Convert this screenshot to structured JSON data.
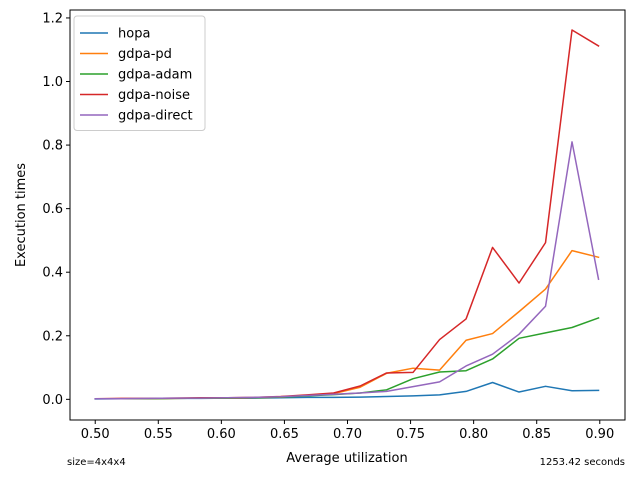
{
  "chart_data": {
    "type": "line",
    "title": "",
    "xlabel": "Average utilization",
    "ylabel": "Execution times",
    "xlim": [
      0.48,
      0.92
    ],
    "ylim": [
      -0.065,
      1.225
    ],
    "xticks": [
      0.5,
      0.55,
      0.6,
      0.65,
      0.7,
      0.75,
      0.8,
      0.85,
      0.9
    ],
    "xtick_labels": [
      "0.50",
      "0.55",
      "0.60",
      "0.65",
      "0.70",
      "0.75",
      "0.80",
      "0.85",
      "0.90"
    ],
    "yticks": [
      0.0,
      0.2,
      0.4,
      0.6,
      0.8,
      1.0,
      1.2
    ],
    "ytick_labels": [
      "0.0",
      "0.2",
      "0.4",
      "0.6",
      "0.8",
      "1.0",
      "1.2"
    ],
    "grid": false,
    "legend_position": "top-left",
    "x": [
      0.5,
      0.521,
      0.542,
      0.563,
      0.584,
      0.605,
      0.626,
      0.647,
      0.668,
      0.689,
      0.71,
      0.731,
      0.752,
      0.773,
      0.794,
      0.815,
      0.836,
      0.857,
      0.878,
      0.899
    ],
    "series": [
      {
        "name": "hopa",
        "color": "#1f77b4",
        "values": [
          0.001,
          0.002,
          0.002,
          0.003,
          0.003,
          0.004,
          0.004,
          0.005,
          0.006,
          0.006,
          0.007,
          0.009,
          0.011,
          0.014,
          0.025,
          0.053,
          0.023,
          0.041,
          0.027,
          0.028
        ]
      },
      {
        "name": "gdpa-pd",
        "color": "#ff7f0e",
        "values": [
          0.002,
          0.002,
          0.002,
          0.003,
          0.004,
          0.004,
          0.005,
          0.007,
          0.012,
          0.018,
          0.038,
          0.082,
          0.098,
          0.092,
          0.186,
          0.207,
          0.276,
          0.347,
          0.468,
          0.447
        ]
      },
      {
        "name": "gdpa-adam",
        "color": "#2ca02c",
        "values": [
          0.002,
          0.002,
          0.002,
          0.003,
          0.004,
          0.004,
          0.005,
          0.007,
          0.011,
          0.015,
          0.02,
          0.03,
          0.065,
          0.086,
          0.09,
          0.127,
          0.192,
          0.209,
          0.226,
          0.256
        ]
      },
      {
        "name": "gdpa-noise",
        "color": "#d62728",
        "values": [
          0.002,
          0.003,
          0.003,
          0.004,
          0.005,
          0.005,
          0.006,
          0.009,
          0.014,
          0.02,
          0.042,
          0.083,
          0.085,
          0.188,
          0.253,
          0.478,
          0.366,
          0.493,
          1.162,
          1.112
        ]
      },
      {
        "name": "gdpa-direct",
        "color": "#9467bd",
        "values": [
          0.002,
          0.002,
          0.003,
          0.004,
          0.004,
          0.005,
          0.006,
          0.008,
          0.012,
          0.016,
          0.02,
          0.025,
          0.04,
          0.055,
          0.105,
          0.142,
          0.205,
          0.293,
          0.81,
          0.378
        ]
      }
    ]
  },
  "notes": {
    "size": "size=4x4x4",
    "runtime": "1253.42 seconds"
  }
}
